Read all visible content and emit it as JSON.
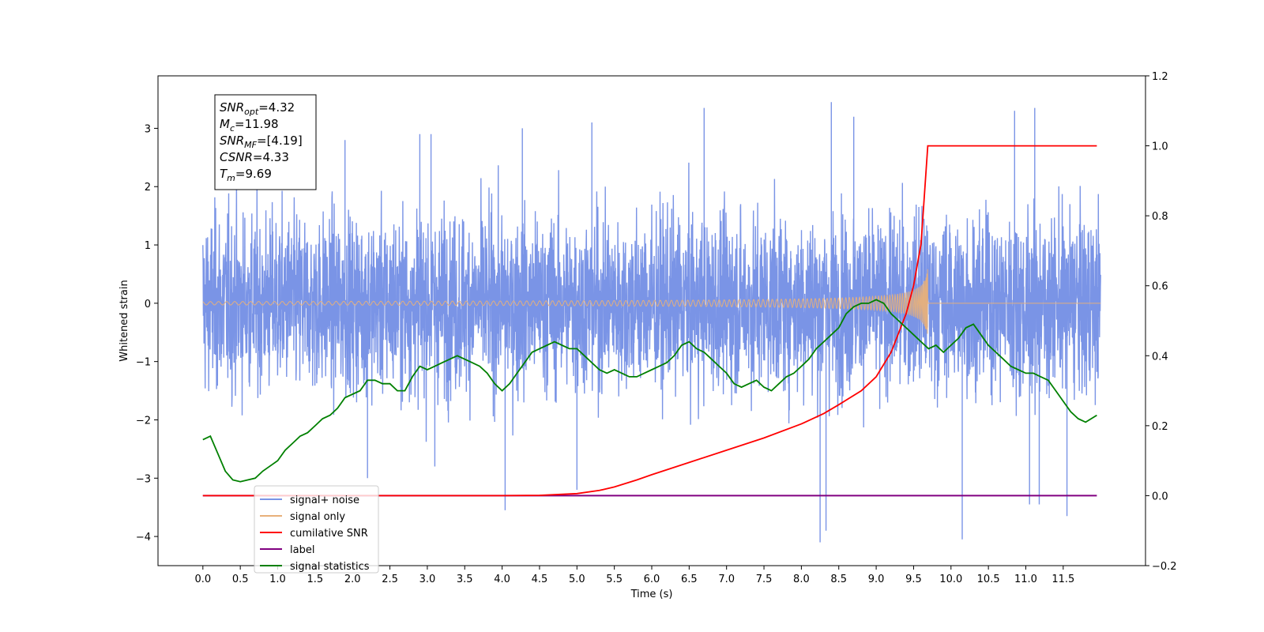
{
  "chart_data": {
    "type": "line",
    "xlabel": "Time (s)",
    "ylabel": "Whitened strain",
    "xlim": [
      -0.6,
      12.6
    ],
    "ylim": [
      -4.5,
      3.9
    ],
    "y2lim": [
      -0.2,
      1.2
    ],
    "grid": false,
    "x_ticks": [
      "0.0",
      "0.5",
      "1.0",
      "1.5",
      "2.0",
      "2.5",
      "3.0",
      "3.5",
      "4.0",
      "4.5",
      "5.0",
      "5.5",
      "6.0",
      "6.5",
      "7.0",
      "7.5",
      "8.0",
      "8.5",
      "9.0",
      "9.5",
      "10.0",
      "10.5",
      "11.0",
      "11.5"
    ],
    "y_ticks": [
      "3",
      "2",
      "1",
      "0",
      "−1",
      "−2",
      "−3",
      "−4"
    ],
    "y2_ticks": [
      "1.2",
      "1.0",
      "0.8",
      "0.6",
      "0.4",
      "0.2",
      "0.0",
      "−0.2"
    ],
    "annotation": [
      {
        "base": "SNR",
        "sub": "opt",
        "value": "=4.32"
      },
      {
        "base": "M",
        "sub": "c",
        "value": "=11.98"
      },
      {
        "base": "SNR",
        "sub": "MF",
        "value": "=[4.19]"
      },
      {
        "base": "CSNR",
        "sub": "",
        "value": "=4.33"
      },
      {
        "base": "T",
        "sub": "m",
        "value": "=9.69"
      }
    ],
    "legend_position": "lower-left",
    "series": [
      {
        "name": "signal+ noise",
        "color": "#7a94e6",
        "axis": "left",
        "x_range": [
          0,
          12
        ],
        "envelope_typical": 1.9,
        "spikes": [
          [
            4.04,
            -3.55
          ],
          [
            8.25,
            -4.1
          ],
          [
            8.33,
            -3.9
          ],
          [
            10.15,
            -4.05
          ],
          [
            11.05,
            -3.45
          ],
          [
            11.18,
            -3.45
          ],
          [
            11.55,
            -3.65
          ],
          [
            4.27,
            3.0
          ],
          [
            5.2,
            3.1
          ],
          [
            6.7,
            3.35
          ],
          [
            8.4,
            3.45
          ],
          [
            8.7,
            3.2
          ],
          [
            10.85,
            3.3
          ],
          [
            11.12,
            3.35
          ],
          [
            2.2,
            -3.0
          ],
          [
            3.1,
            -2.8
          ],
          [
            5.0,
            -3.2
          ],
          [
            2.9,
            2.9
          ],
          [
            3.05,
            2.9
          ],
          [
            1.9,
            2.8
          ]
        ]
      },
      {
        "name": "signal only",
        "color": "#e8b07a",
        "axis": "left",
        "merger_time": 9.69,
        "peak_amplitude": 0.6
      },
      {
        "name": "cumilative SNR",
        "color": "#ff0000",
        "axis": "right",
        "x": [
          0,
          4.0,
          4.5,
          5.0,
          5.3,
          5.5,
          5.8,
          6.0,
          6.5,
          7.0,
          7.5,
          8.0,
          8.3,
          8.5,
          8.8,
          9.0,
          9.2,
          9.4,
          9.5,
          9.6,
          9.69,
          9.7,
          11.95
        ],
        "values": [
          0,
          0,
          0.001,
          0.006,
          0.015,
          0.025,
          0.045,
          0.06,
          0.095,
          0.13,
          0.165,
          0.205,
          0.235,
          0.26,
          0.3,
          0.34,
          0.41,
          0.52,
          0.6,
          0.72,
          1.0,
          1.0,
          1.0
        ]
      },
      {
        "name": "label",
        "color": "#800080",
        "axis": "right",
        "x": [
          0,
          11.95
        ],
        "values": [
          0,
          0
        ]
      },
      {
        "name": "signal statistics",
        "color": "#008000",
        "axis": "right",
        "x": [
          0,
          0.1,
          0.2,
          0.3,
          0.4,
          0.5,
          0.6,
          0.7,
          0.8,
          0.9,
          1.0,
          1.1,
          1.2,
          1.3,
          1.4,
          1.5,
          1.6,
          1.7,
          1.8,
          1.9,
          2.0,
          2.1,
          2.2,
          2.3,
          2.4,
          2.5,
          2.6,
          2.7,
          2.8,
          2.9,
          3.0,
          3.1,
          3.2,
          3.3,
          3.4,
          3.5,
          3.6,
          3.7,
          3.8,
          3.9,
          4.0,
          4.1,
          4.2,
          4.3,
          4.4,
          4.5,
          4.6,
          4.7,
          4.8,
          4.9,
          5.0,
          5.1,
          5.2,
          5.3,
          5.4,
          5.5,
          5.6,
          5.7,
          5.8,
          5.9,
          6.0,
          6.1,
          6.2,
          6.3,
          6.4,
          6.5,
          6.6,
          6.7,
          6.8,
          6.9,
          7.0,
          7.1,
          7.2,
          7.3,
          7.4,
          7.5,
          7.6,
          7.7,
          7.8,
          7.9,
          8.0,
          8.1,
          8.2,
          8.3,
          8.4,
          8.5,
          8.6,
          8.7,
          8.8,
          8.9,
          9.0,
          9.1,
          9.2,
          9.3,
          9.4,
          9.5,
          9.6,
          9.7,
          9.8,
          9.9,
          10.0,
          10.1,
          10.2,
          10.3,
          10.4,
          10.5,
          10.6,
          10.7,
          10.8,
          10.9,
          11.0,
          11.1,
          11.2,
          11.3,
          11.4,
          11.5,
          11.6,
          11.7,
          11.8,
          11.95
        ],
        "values": [
          0.16,
          0.17,
          0.12,
          0.07,
          0.045,
          0.04,
          0.045,
          0.05,
          0.07,
          0.085,
          0.1,
          0.13,
          0.15,
          0.17,
          0.18,
          0.2,
          0.22,
          0.23,
          0.25,
          0.28,
          0.29,
          0.3,
          0.33,
          0.33,
          0.32,
          0.32,
          0.3,
          0.3,
          0.34,
          0.37,
          0.36,
          0.37,
          0.38,
          0.39,
          0.4,
          0.39,
          0.38,
          0.37,
          0.35,
          0.32,
          0.3,
          0.32,
          0.35,
          0.38,
          0.41,
          0.42,
          0.43,
          0.44,
          0.43,
          0.42,
          0.42,
          0.4,
          0.38,
          0.36,
          0.35,
          0.36,
          0.35,
          0.34,
          0.34,
          0.35,
          0.36,
          0.37,
          0.38,
          0.4,
          0.43,
          0.44,
          0.42,
          0.41,
          0.39,
          0.37,
          0.35,
          0.32,
          0.31,
          0.32,
          0.33,
          0.31,
          0.3,
          0.32,
          0.34,
          0.35,
          0.37,
          0.39,
          0.42,
          0.44,
          0.46,
          0.48,
          0.52,
          0.54,
          0.55,
          0.55,
          0.56,
          0.55,
          0.52,
          0.5,
          0.48,
          0.46,
          0.44,
          0.42,
          0.43,
          0.41,
          0.43,
          0.45,
          0.48,
          0.49,
          0.46,
          0.43,
          0.41,
          0.39,
          0.37,
          0.36,
          0.35,
          0.35,
          0.34,
          0.33,
          0.3,
          0.27,
          0.24,
          0.22,
          0.21,
          0.23
        ]
      }
    ]
  }
}
